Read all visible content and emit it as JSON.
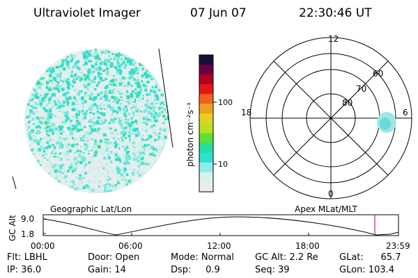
{
  "header": {
    "title": "Ultraviolet Imager",
    "date": "07 Jun 07",
    "time": "22:30:46 UT"
  },
  "colorbar": {
    "title": "photon cm⁻²s⁻¹",
    "ticks": [
      "100",
      "10"
    ],
    "scale": "log",
    "colors": [
      "#1a0f3a",
      "#6a0040",
      "#b0001e",
      "#e01818",
      "#f06020",
      "#f0a020",
      "#e8d020",
      "#b8e020",
      "#60e030",
      "#20e0a0",
      "#30e0d0",
      "#90ece6",
      "#d8f0ee",
      "#ececec"
    ]
  },
  "panels": {
    "left_label": "Geographic Lat/Lon",
    "right_label": "Apex MLat/MLT"
  },
  "polar": {
    "mlt_labels": [
      "12",
      "6",
      "0",
      "18"
    ],
    "lat_labels": [
      "60",
      "70",
      "80"
    ]
  },
  "timeline": {
    "ylabel": "GC Alt",
    "y_ticks": [
      "9.0",
      "1.8"
    ],
    "x_ticks": [
      "00:00",
      "06:00",
      "12:00",
      "18:00",
      "23:59"
    ],
    "marker_time": "22:30",
    "marker_color": "#cc0000"
  },
  "footer": {
    "col1": [
      "Flt: LBHL",
      "IP: 36.0"
    ],
    "col2": [
      "Door: Open",
      "Gain: 14"
    ],
    "col3": [
      "Mode: Normal",
      "Dsp:     0.9"
    ],
    "col4": [
      "GC Alt: 2.2 Re",
      "Seq: 39"
    ],
    "col5": [
      "GLat:      65.7",
      "GLon: 103.4"
    ]
  }
}
